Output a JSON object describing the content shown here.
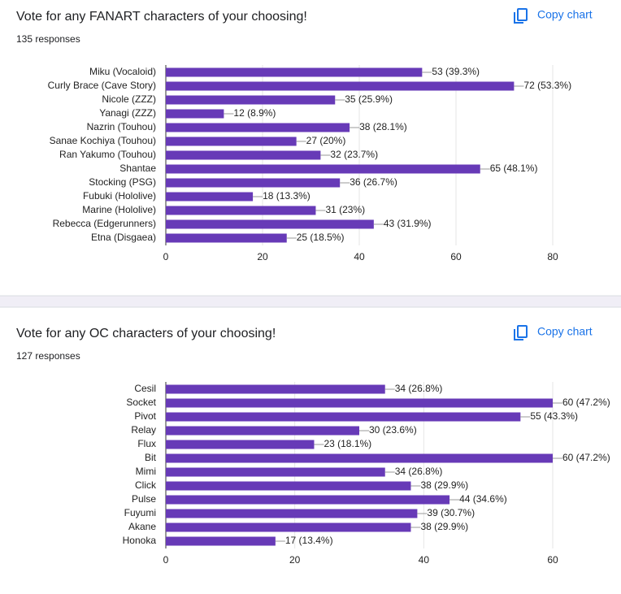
{
  "chart_data": [
    {
      "type": "bar",
      "orientation": "horizontal",
      "title": "Vote for any FANART characters of your choosing!",
      "subtitle": "135 responses",
      "action": "Copy chart",
      "categories": [
        "Miku (Vocaloid)",
        "Curly Brace (Cave Story)",
        "Nicole (ZZZ)",
        "Yanagi (ZZZ)",
        "Nazrin (Touhou)",
        "Sanae Kochiya (Touhou)",
        "Ran Yakumo (Touhou)",
        "Shantae",
        "Stocking (PSG)",
        "Fubuki (Hololive)",
        "Marine (Hololive)",
        "Rebecca (Edgerunners)",
        "Etna (Disgaea)"
      ],
      "values": [
        53,
        72,
        35,
        12,
        38,
        27,
        32,
        65,
        36,
        18,
        31,
        43,
        25
      ],
      "value_labels": [
        "53 (39.3%)",
        "72 (53.3%)",
        "35 (25.9%)",
        "12 (8.9%)",
        "38 (28.1%)",
        "27 (20%)",
        "32 (23.7%)",
        "65 (48.1%)",
        "36 (26.7%)",
        "18 (13.3%)",
        "31 (23%)",
        "43 (31.9%)",
        "25 (18.5%)"
      ],
      "color": "#673ab7",
      "xlim": [
        0,
        80
      ],
      "xticks": [
        0,
        20,
        40,
        60,
        80
      ],
      "grid": true
    },
    {
      "type": "bar",
      "orientation": "horizontal",
      "title": "Vote for any OC characters of your choosing!",
      "subtitle": "127 responses",
      "action": "Copy chart",
      "categories": [
        "Cesil",
        "Socket",
        "Pivot",
        "Relay",
        "Flux",
        "Bit",
        "Mimi",
        "Click",
        "Pulse",
        "Fuyumi",
        "Akane",
        "Honoka"
      ],
      "values": [
        34,
        60,
        55,
        30,
        23,
        60,
        34,
        38,
        44,
        39,
        38,
        17
      ],
      "value_labels": [
        "34 (26.8%)",
        "60 (47.2%)",
        "55 (43.3%)",
        "30 (23.6%)",
        "23 (18.1%)",
        "60 (47.2%)",
        "34 (26.8%)",
        "38 (29.9%)",
        "44 (34.6%)",
        "39 (30.7%)",
        "38 (29.9%)",
        "17 (13.4%)"
      ],
      "color": "#673ab7",
      "xlim": [
        0,
        60
      ],
      "xticks": [
        0,
        20,
        40,
        60
      ],
      "grid": true
    }
  ]
}
